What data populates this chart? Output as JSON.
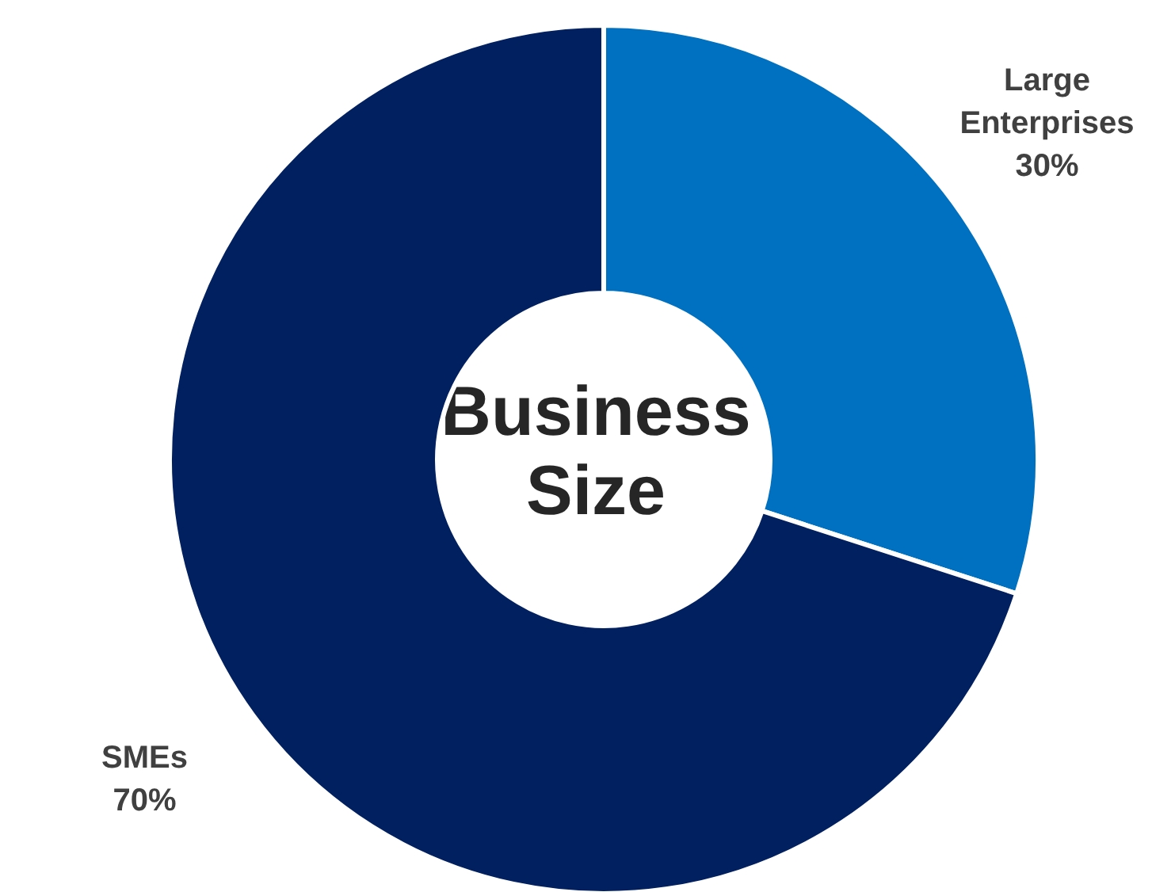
{
  "chart_data": {
    "type": "donut",
    "title": "Business Size",
    "categories": [
      "Large Enterprises",
      "SMEs"
    ],
    "values": [
      30,
      70
    ],
    "colors": [
      "#0070c0",
      "#002060"
    ],
    "value_labels": [
      "30%",
      "70%"
    ],
    "legend": false
  }
}
